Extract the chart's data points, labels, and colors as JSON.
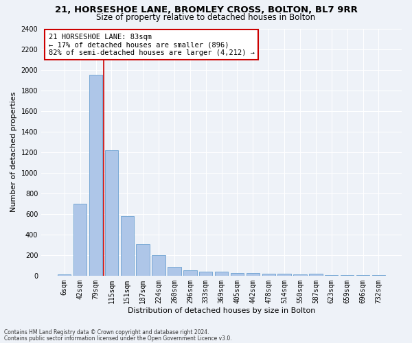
{
  "title1": "21, HORSESHOE LANE, BROMLEY CROSS, BOLTON, BL7 9RR",
  "title2": "Size of property relative to detached houses in Bolton",
  "xlabel": "Distribution of detached houses by size in Bolton",
  "ylabel": "Number of detached properties",
  "categories": [
    "6sqm",
    "42sqm",
    "79sqm",
    "115sqm",
    "151sqm",
    "187sqm",
    "224sqm",
    "260sqm",
    "296sqm",
    "333sqm",
    "369sqm",
    "405sqm",
    "442sqm",
    "478sqm",
    "514sqm",
    "550sqm",
    "587sqm",
    "623sqm",
    "659sqm",
    "696sqm",
    "732sqm"
  ],
  "values": [
    15,
    700,
    1950,
    1220,
    580,
    305,
    200,
    85,
    50,
    40,
    40,
    25,
    25,
    20,
    20,
    10,
    20,
    5,
    5,
    5,
    5
  ],
  "bar_color": "#aec6e8",
  "bar_edge_color": "#6aa0d0",
  "red_line_index": 2,
  "annotation_text_line1": "21 HORSESHOE LANE: 83sqm",
  "annotation_text_line2": "← 17% of detached houses are smaller (896)",
  "annotation_text_line3": "82% of semi-detached houses are larger (4,212) →",
  "annotation_box_color": "#ffffff",
  "annotation_box_edge": "#cc0000",
  "red_line_color": "#cc0000",
  "footnote1": "Contains HM Land Registry data © Crown copyright and database right 2024.",
  "footnote2": "Contains public sector information licensed under the Open Government Licence v3.0.",
  "ylim": [
    0,
    2400
  ],
  "yticks": [
    0,
    200,
    400,
    600,
    800,
    1000,
    1200,
    1400,
    1600,
    1800,
    2000,
    2200,
    2400
  ],
  "background_color": "#eef2f8",
  "grid_color": "#ffffff",
  "title1_fontsize": 9.5,
  "title2_fontsize": 8.5,
  "xlabel_fontsize": 8,
  "ylabel_fontsize": 8,
  "tick_fontsize": 7,
  "annot_fontsize": 7.5,
  "footnote_fontsize": 5.5
}
